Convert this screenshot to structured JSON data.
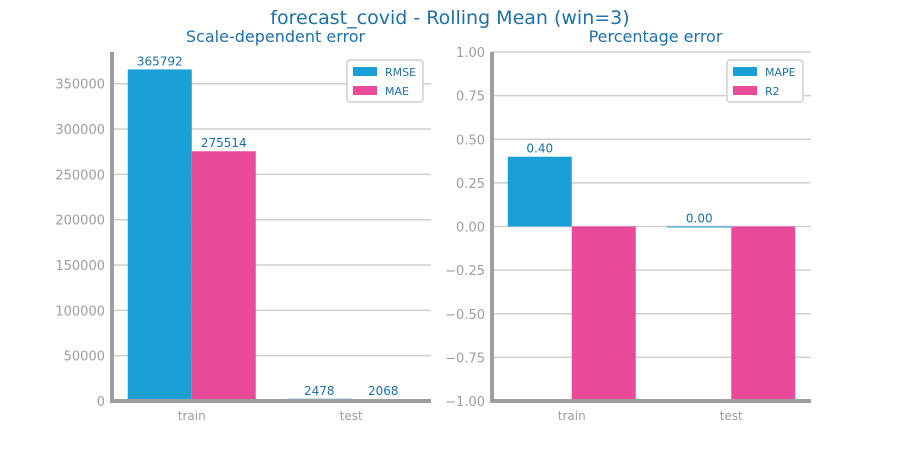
{
  "figure": {
    "title": "forecast_covid - Rolling Mean (win=3)",
    "colors": {
      "title": "#1F6FA8",
      "axis_spine": "#9E9E9E",
      "tick_text": "#9E9E9E",
      "grid": "#CFCFCF",
      "data_label": "#1F6FA8"
    }
  },
  "chart_data": [
    {
      "type": "bar",
      "title": "Scale-dependent error",
      "categories": [
        "train",
        "test"
      ],
      "series": [
        {
          "name": "RMSE",
          "color": "#1A9FD6",
          "values": [
            365792,
            2478
          ]
        },
        {
          "name": "MAE",
          "color": "#EA4A9A",
          "values": [
            275514,
            2068
          ]
        }
      ],
      "data_labels": [
        [
          "365792",
          "2478"
        ],
        [
          "275514",
          "2068"
        ]
      ],
      "ylim": [
        0,
        385000
      ],
      "yticks": [
        0,
        50000,
        100000,
        150000,
        200000,
        250000,
        300000,
        350000
      ],
      "ytick_labels": [
        "0",
        "50000",
        "100000",
        "150000",
        "200000",
        "250000",
        "300000",
        "350000"
      ],
      "grid": true,
      "legend_position": "top-right",
      "xlabel": "",
      "ylabel": ""
    },
    {
      "type": "bar",
      "title": "Percentage error",
      "categories": [
        "train",
        "test"
      ],
      "series": [
        {
          "name": "MAPE",
          "color": "#1A9FD6",
          "values": [
            0.4,
            0.0
          ]
        },
        {
          "name": "R2",
          "color": "#EA4A9A",
          "values": [
            -1.0,
            -1.0
          ]
        }
      ],
      "data_labels": [
        [
          "0.40",
          "0.00"
        ],
        [
          "",
          ""
        ]
      ],
      "ylim": [
        -1.0,
        1.0
      ],
      "yticks": [
        -1.0,
        -0.75,
        -0.5,
        -0.25,
        0.0,
        0.25,
        0.5,
        0.75,
        1.0
      ],
      "ytick_labels": [
        "−1.00",
        "−0.75",
        "−0.50",
        "−0.25",
        "0.00",
        "0.25",
        "0.50",
        "0.75",
        "1.00"
      ],
      "grid": true,
      "legend_position": "top-right",
      "xlabel": "",
      "ylabel": ""
    }
  ]
}
